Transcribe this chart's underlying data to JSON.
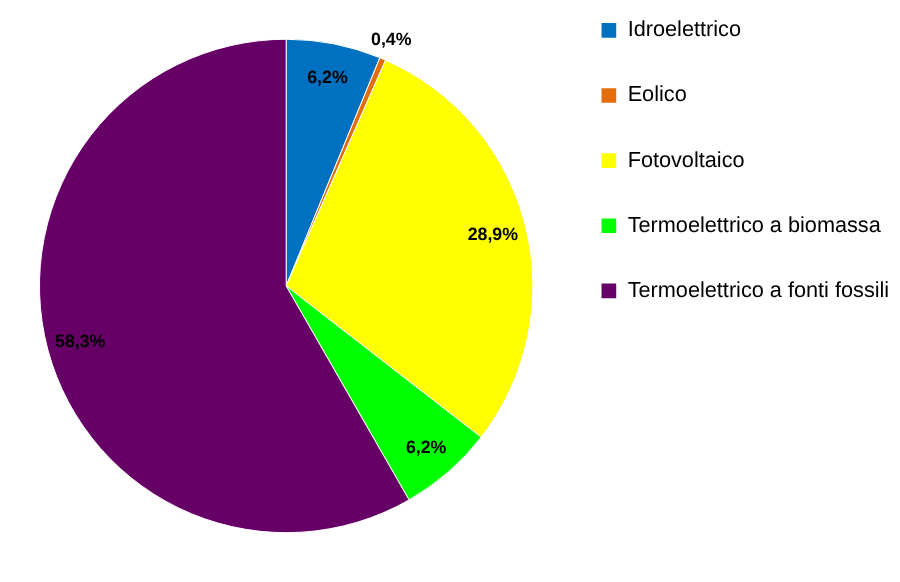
{
  "chart_data": {
    "type": "pie",
    "categories": [
      "Idroelettrico",
      "Eolico",
      "Fotovoltaico",
      "Termoelettrico a biomassa",
      "Termoelettrico a fonti fossili"
    ],
    "values": [
      6.2,
      0.4,
      28.9,
      6.2,
      58.3
    ],
    "colors": [
      "#0070c0",
      "#e46c0a",
      "#ffff00",
      "#00ff00",
      "#660066"
    ],
    "value_labels": [
      "6,2%",
      "0,4%",
      "28,9%",
      "6,2%",
      "58,3%"
    ],
    "legend": "right"
  }
}
